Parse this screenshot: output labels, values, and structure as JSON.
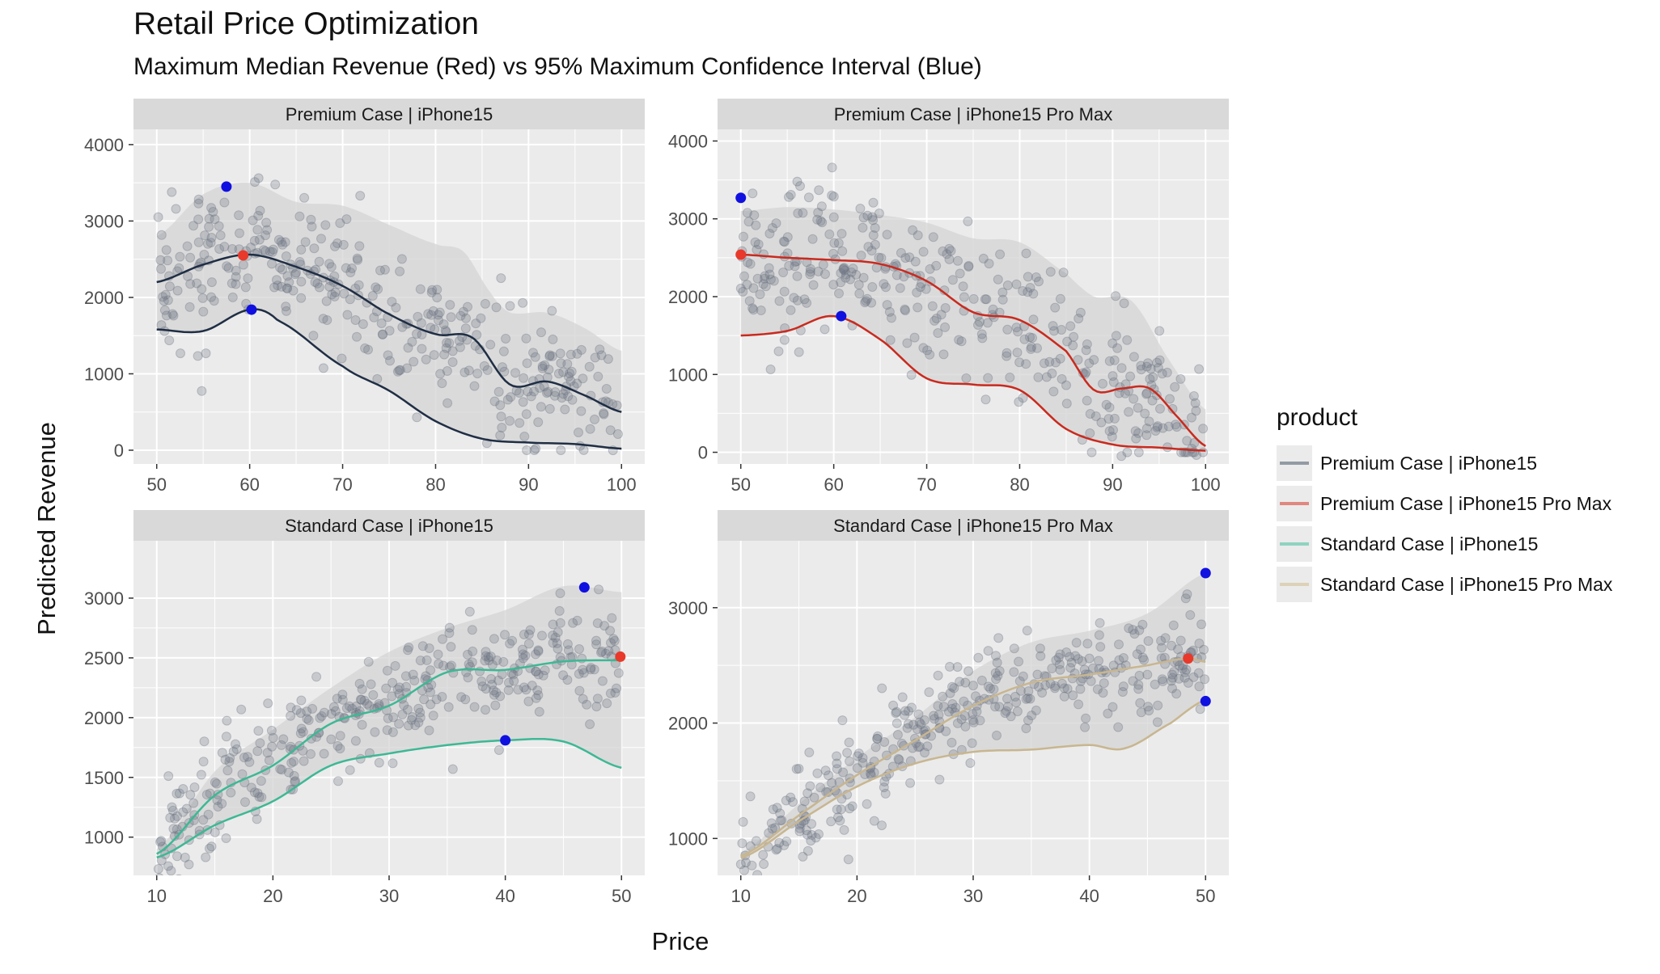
{
  "title": "Retail Price Optimization",
  "subtitle": "Maximum Median Revenue (Red) vs 95% Maximum Confidence Interval (Blue)",
  "xlabel": "Price",
  "ylabel": "Predicted Revenue",
  "legend": {
    "title": "product",
    "items": [
      {
        "label": "Premium Case | iPhone15",
        "color": "#939aa3"
      },
      {
        "label": "Premium Case | iPhone15 Pro Max",
        "color": "#e0877f"
      },
      {
        "label": "Standard Case | iPhone15",
        "color": "#8fd3c0"
      },
      {
        "label": "Standard Case | iPhone15 Pro Max",
        "color": "#ddd1b8"
      }
    ]
  },
  "colors": {
    "panel_bg": "#ebebeb",
    "strip_bg": "#d9d9d9",
    "grid": "#ffffff",
    "points": "#6b7480",
    "ribbon": "#d4d4d4",
    "max_median": "#e8392b",
    "max_ci": "#1010e0"
  },
  "chart_data": [
    {
      "type": "scatter",
      "panel": "Premium Case | iPhone15",
      "line_color": "#1f2e44",
      "xlim": [
        47.5,
        102.5
      ],
      "ylim": [
        -180,
        4200
      ],
      "x_ticks": [
        50,
        60,
        70,
        80,
        90,
        100
      ],
      "y_ticks": [
        0,
        1000,
        2000,
        3000,
        4000
      ],
      "scatter_seed": 11,
      "scatter_n": 380,
      "scatter_spread": 620,
      "series": [
        {
          "name": "median",
          "x": [
            50,
            55,
            60,
            65,
            70,
            75,
            80,
            84,
            88,
            92,
            96,
            100
          ],
          "y": [
            2200,
            2430,
            2560,
            2400,
            2150,
            1780,
            1520,
            1470,
            860,
            900,
            720,
            500
          ]
        },
        {
          "name": "lower",
          "x": [
            50,
            55,
            60,
            63,
            70,
            75,
            80,
            85,
            90,
            95,
            100
          ],
          "y": [
            1580,
            1560,
            1840,
            1700,
            1100,
            780,
            380,
            150,
            100,
            80,
            20
          ]
        },
        {
          "name": "upper",
          "x": [
            50,
            55,
            60,
            65,
            70,
            75,
            80,
            83,
            86,
            88,
            92,
            96,
            100
          ],
          "y": [
            2800,
            3350,
            3500,
            3250,
            3200,
            2950,
            2700,
            2600,
            2050,
            1800,
            1800,
            1600,
            1300
          ]
        }
      ],
      "max_median": {
        "x": 59.3,
        "y": 2550
      },
      "max_ci": [
        {
          "x": 57.5,
          "y": 3450
        },
        {
          "x": 60.2,
          "y": 1840
        }
      ]
    },
    {
      "type": "scatter",
      "panel": "Premium Case | iPhone15 Pro Max",
      "line_color": "#c92a1e",
      "xlim": [
        47.5,
        102.5
      ],
      "ylim": [
        -150,
        4150
      ],
      "x_ticks": [
        50,
        60,
        70,
        80,
        90,
        100
      ],
      "y_ticks": [
        0,
        1000,
        2000,
        3000,
        4000
      ],
      "scatter_seed": 23,
      "scatter_n": 380,
      "scatter_spread": 650,
      "series": [
        {
          "name": "median",
          "x": [
            50,
            55,
            60,
            65,
            70,
            75,
            80,
            85,
            88,
            91,
            94,
            97,
            100
          ],
          "y": [
            2540,
            2500,
            2470,
            2420,
            2200,
            1800,
            1700,
            1300,
            800,
            820,
            820,
            450,
            80
          ]
        },
        {
          "name": "lower",
          "x": [
            50,
            55,
            60,
            65,
            70,
            75,
            80,
            85,
            90,
            95,
            100
          ],
          "y": [
            1500,
            1560,
            1750,
            1450,
            950,
            870,
            800,
            300,
            100,
            60,
            20
          ]
        },
        {
          "name": "upper",
          "x": [
            50,
            55,
            60,
            65,
            70,
            75,
            80,
            85,
            88,
            92,
            96,
            100
          ],
          "y": [
            3100,
            3150,
            3120,
            3050,
            2950,
            2750,
            2700,
            2300,
            2000,
            1950,
            1200,
            550
          ]
        }
      ],
      "max_median": {
        "x": 50,
        "y": 2540
      },
      "max_ci": [
        {
          "x": 50,
          "y": 3270
        },
        {
          "x": 60.8,
          "y": 1750
        }
      ]
    },
    {
      "type": "scatter",
      "panel": "Standard Case | iPhone15",
      "line_color": "#3db894",
      "xlim": [
        8,
        52
      ],
      "ylim": [
        680,
        3480
      ],
      "x_ticks": [
        10,
        20,
        30,
        40,
        50
      ],
      "y_ticks": [
        1000,
        1500,
        2000,
        2500,
        3000
      ],
      "scatter_seed": 37,
      "scatter_n": 380,
      "scatter_spread": 300,
      "series": [
        {
          "name": "median",
          "x": [
            10,
            15,
            20,
            25,
            30,
            35,
            40,
            45,
            50
          ],
          "y": [
            860,
            1350,
            1600,
            1950,
            2100,
            2380,
            2400,
            2470,
            2480
          ]
        },
        {
          "name": "lower",
          "x": [
            10,
            15,
            20,
            25,
            30,
            35,
            40,
            45,
            50
          ],
          "y": [
            830,
            1100,
            1300,
            1600,
            1700,
            1770,
            1810,
            1800,
            1580
          ]
        },
        {
          "name": "upper",
          "x": [
            10,
            15,
            20,
            25,
            30,
            35,
            40,
            45,
            50
          ],
          "y": [
            900,
            1550,
            1900,
            2250,
            2550,
            2750,
            2900,
            3100,
            3050
          ]
        }
      ],
      "max_median": {
        "x": 49.9,
        "y": 2510
      },
      "max_ci": [
        {
          "x": 46.8,
          "y": 3090
        },
        {
          "x": 40,
          "y": 1810
        }
      ]
    },
    {
      "type": "scatter",
      "panel": "Standard Case | iPhone15 Pro Max",
      "line_color": "#c8b690",
      "xlim": [
        8,
        52
      ],
      "ylim": [
        680,
        3580
      ],
      "x_ticks": [
        10,
        20,
        30,
        40,
        50
      ],
      "y_ticks": [
        1000,
        2000,
        3000
      ],
      "scatter_seed": 51,
      "scatter_n": 380,
      "scatter_spread": 260,
      "series": [
        {
          "name": "median",
          "x": [
            10,
            15,
            20,
            25,
            30,
            35,
            40,
            45,
            48.5,
            50
          ],
          "y": [
            850,
            1200,
            1550,
            1850,
            2150,
            2350,
            2420,
            2500,
            2560,
            2530
          ]
        },
        {
          "name": "lower",
          "x": [
            10,
            15,
            20,
            25,
            30,
            35,
            40,
            43,
            47,
            50
          ],
          "y": [
            830,
            1150,
            1450,
            1650,
            1750,
            1770,
            1810,
            1780,
            2000,
            2200
          ]
        },
        {
          "name": "upper",
          "x": [
            10,
            15,
            20,
            25,
            30,
            35,
            40,
            45,
            50
          ],
          "y": [
            880,
            1300,
            1700,
            2050,
            2450,
            2700,
            2800,
            2950,
            3300
          ]
        }
      ],
      "max_median": {
        "x": 48.5,
        "y": 2560
      },
      "max_ci": [
        {
          "x": 50,
          "y": 3300
        },
        {
          "x": 50,
          "y": 2190
        }
      ]
    }
  ]
}
